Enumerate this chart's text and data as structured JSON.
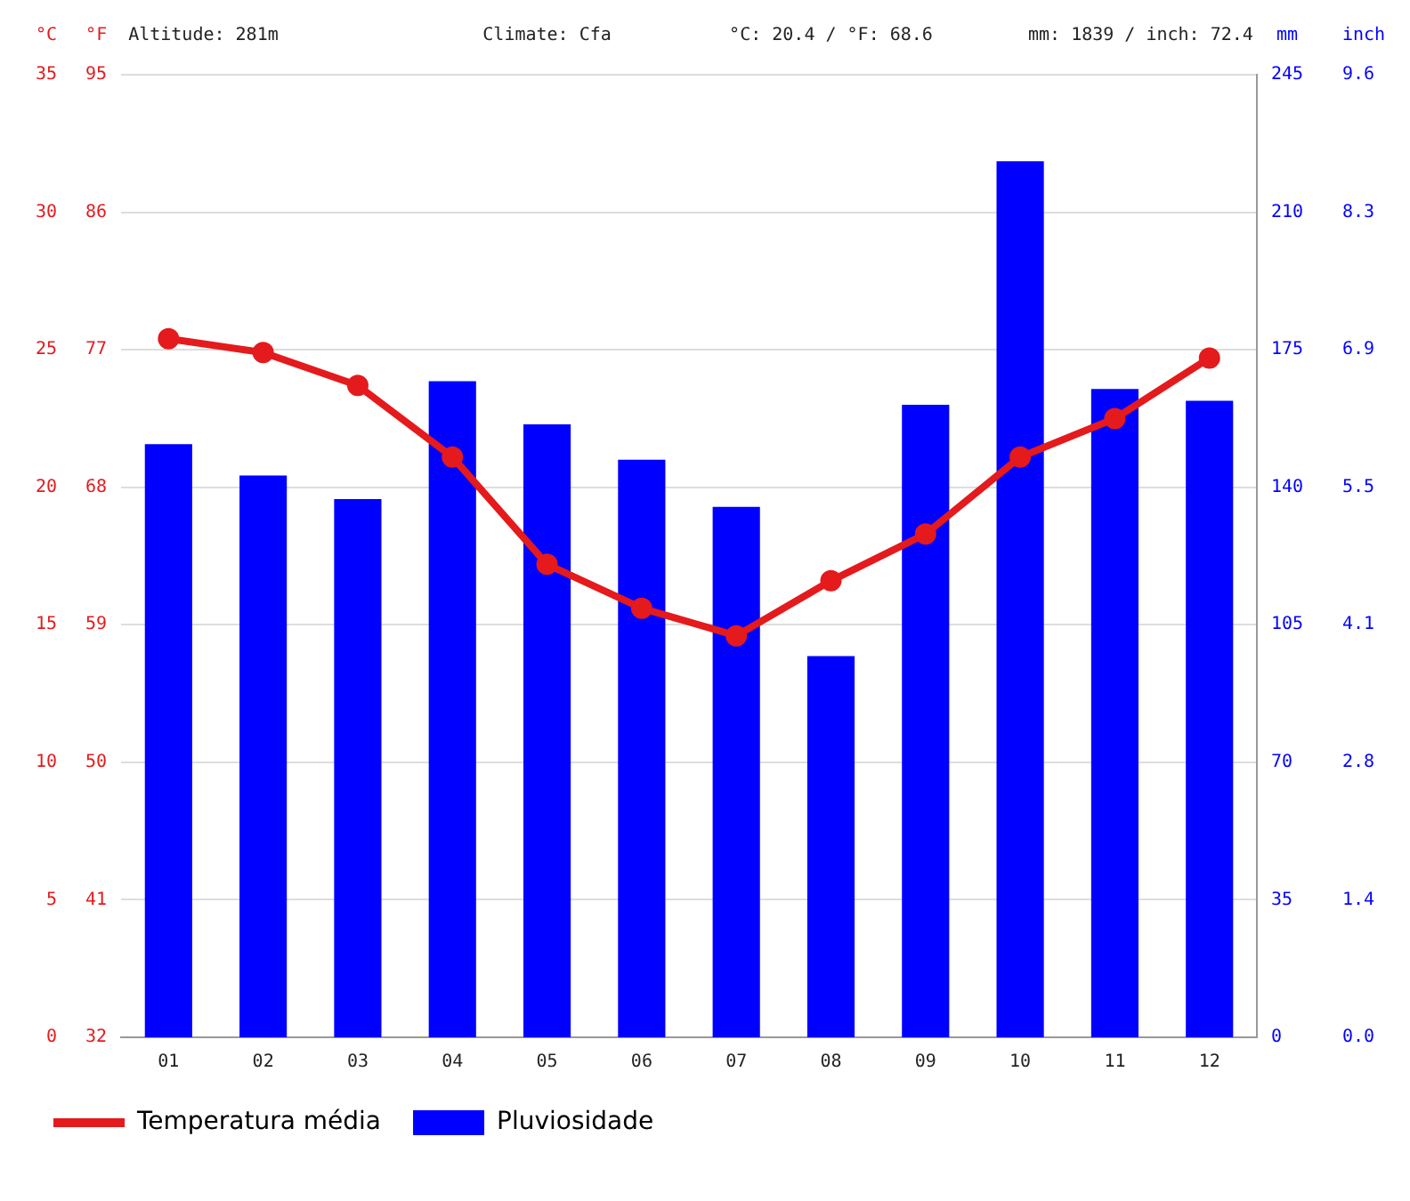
{
  "chart_data": {
    "type": "bar",
    "categories": [
      "01",
      "02",
      "03",
      "04",
      "05",
      "06",
      "07",
      "08",
      "09",
      "10",
      "11",
      "12"
    ],
    "series": [
      {
        "name": "Temperatura média",
        "type": "line",
        "axis": "y",
        "color": "#e41a1c",
        "marker": "circle",
        "values": [
          25.4,
          24.9,
          23.7,
          21.1,
          17.2,
          15.6,
          14.6,
          16.6,
          18.3,
          21.1,
          22.5,
          24.7
        ]
      },
      {
        "name": "Pluviosidade",
        "axis": "y2",
        "color": "#0000ff",
        "values": [
          151,
          143,
          137,
          167,
          156,
          147,
          135,
          97,
          161,
          223,
          165,
          162
        ]
      }
    ],
    "ylabel": "°C",
    "ylim": [
      0,
      35
    ],
    "yticks": [
      0,
      5,
      10,
      15,
      20,
      25,
      30,
      35
    ],
    "y3label": "°F",
    "y3lim": [
      32,
      95
    ],
    "y3ticks": [
      32,
      41,
      50,
      59,
      68,
      77,
      86,
      95
    ],
    "y2label": "mm",
    "y2lim": [
      0,
      245
    ],
    "y2ticks": [
      0,
      35,
      70,
      105,
      140,
      175,
      210,
      245
    ],
    "annotations": [
      "Altitude: 281m",
      "Climate: Cfa",
      "°C: 20.4 / °F: 68.6",
      "mm: 1839 / inch: 72.4",
      "inch",
      "0.0",
      "1.4",
      "2.8",
      "4.1",
      "5.5",
      "6.9",
      "8.3",
      "9.6"
    ],
    "grid": "y",
    "legend": "bottom left"
  }
}
